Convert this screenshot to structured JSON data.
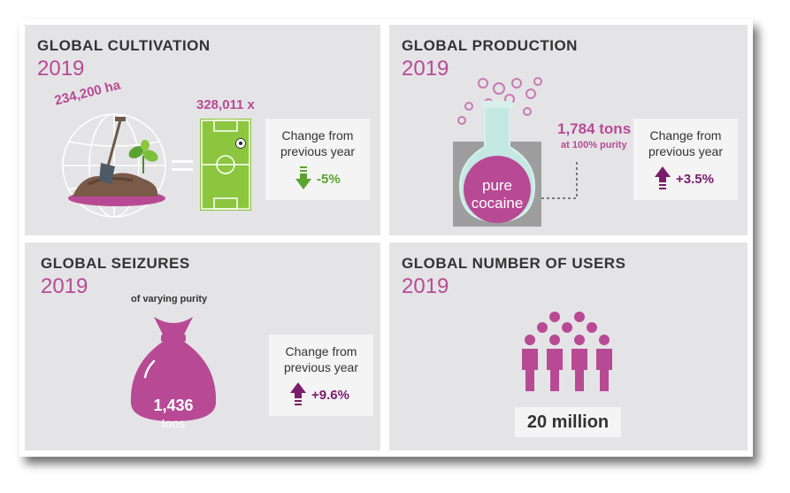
{
  "cultivation": {
    "title": "GLOBAL CULTIVATION",
    "year": "2019",
    "area": "234,200 ha",
    "fields": "328,011 x",
    "change_label_1": "Change from",
    "change_label_2": "previous year",
    "change_value": "-5%",
    "change_direction": "down",
    "change_color": "#5aa32e"
  },
  "production": {
    "title": "GLOBAL PRODUCTION",
    "year": "2019",
    "amount": "1,784 tons",
    "purity": "at 100% purity",
    "flask_line1": "pure",
    "flask_line2": "cocaine",
    "change_label_1": "Change from",
    "change_label_2": "previous year",
    "change_value": "+3.5%",
    "change_direction": "up",
    "change_color": "#7b1c6b"
  },
  "seizures": {
    "title": "GLOBAL SEIZURES",
    "year": "2019",
    "note": "of varying purity",
    "amount": "1,436",
    "unit": "tons",
    "change_label_1": "Change from",
    "change_label_2": "previous year",
    "change_value": "+9.6%",
    "change_direction": "up",
    "change_color": "#7b1c6b"
  },
  "users": {
    "title": "GLOBAL NUMBER OF USERS",
    "year": "2019",
    "count": "20 million"
  },
  "colors": {
    "accent": "#b84a95",
    "panel_bg": "#e4e4e6",
    "field_green": "#8cc63f",
    "arrow_down": "#5aa32e",
    "arrow_up": "#7b1c6b"
  },
  "icons": [
    "globe-icon",
    "soil-mound-icon",
    "shovel-icon",
    "plant-icon",
    "equals-icon",
    "football-field-icon",
    "football-icon",
    "flask-icon",
    "bubbles-icon",
    "down-arrow-icon",
    "up-arrow-icon",
    "money-bag-icon",
    "people-icon"
  ]
}
